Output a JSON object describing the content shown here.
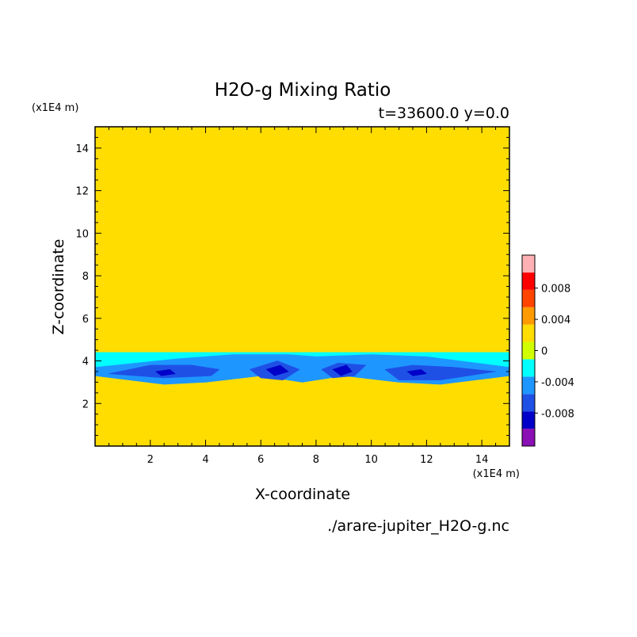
{
  "chart_data": {
    "type": "heatmap",
    "title": "H2O-g Mixing Ratio",
    "subtitle": "t=33600.0 y=0.0",
    "xlabel": "X-coordinate",
    "ylabel": "Z-coordinate",
    "x_unit": "(x1E4 m)",
    "y_unit": "(x1E4 m)",
    "source": "./arare-jupiter_H2O-g.nc",
    "xlim": [
      0,
      15
    ],
    "ylim": [
      0,
      15
    ],
    "x_ticks": [
      2,
      4,
      6,
      8,
      10,
      12,
      14
    ],
    "y_ticks": [
      2,
      4,
      6,
      8,
      10,
      12,
      14
    ],
    "colorbar": {
      "levels": [
        -0.01,
        -0.008,
        -0.006,
        -0.004,
        -0.002,
        0,
        0.002,
        0.004,
        0.006,
        0.008,
        0.01
      ],
      "colors": [
        "#8a0fb4",
        "#0000c8",
        "#1f50e6",
        "#1e96ff",
        "#00ffff",
        "#d2ff00",
        "#ffdd00",
        "#ff9a00",
        "#ff4400",
        "#ff0000",
        "#ffb0b4"
      ],
      "tick_labels": [
        "-0.008",
        "-0.004",
        "0",
        "0.004",
        "0.008"
      ],
      "tick_values": [
        -0.008,
        -0.004,
        0,
        0.004,
        0.008
      ]
    },
    "background_value": 0.0,
    "field_regions": [
      {
        "value": 0.001,
        "polygon": [
          [
            0,
            0
          ],
          [
            0,
            3.1
          ],
          [
            1.5,
            3.0
          ],
          [
            2,
            2.8
          ],
          [
            3,
            2.6
          ],
          [
            3.4,
            2.0
          ],
          [
            3.2,
            0.3
          ],
          [
            3.4,
            0.1
          ],
          [
            4.1,
            0.2
          ],
          [
            4.4,
            1.8
          ],
          [
            4.8,
            2.5
          ],
          [
            6,
            2.8
          ],
          [
            6.8,
            2.3
          ],
          [
            7.2,
            1.6
          ],
          [
            7.4,
            0.8
          ],
          [
            7.6,
            0.8
          ],
          [
            8,
            1.3
          ],
          [
            8.5,
            2.3
          ],
          [
            9.5,
            2.8
          ],
          [
            10.7,
            2.6
          ],
          [
            11.3,
            1.8
          ],
          [
            11.7,
            0.2
          ],
          [
            12.2,
            0.2
          ],
          [
            12.6,
            1.5
          ],
          [
            13,
            2.7
          ],
          [
            14,
            3.0
          ],
          [
            15,
            3.1
          ],
          [
            15,
            0
          ]
        ]
      },
      {
        "value": 0.001,
        "polygon": [
          [
            0,
            7.3
          ],
          [
            0,
            11.9
          ],
          [
            4.6,
            11.9
          ],
          [
            4.4,
            11.2
          ],
          [
            3.8,
            10.9
          ],
          [
            3.4,
            10.3
          ],
          [
            2.8,
            9.9
          ],
          [
            1.5,
            10.3
          ],
          [
            0.8,
            9.7
          ],
          [
            0.5,
            9.0
          ],
          [
            1.0,
            8.6
          ],
          [
            1.3,
            8.0
          ],
          [
            1.0,
            7.3
          ]
        ]
      },
      {
        "value": 0.001,
        "polygon": [
          [
            15,
            7.3
          ],
          [
            15,
            11.9
          ],
          [
            10.4,
            11.9
          ],
          [
            10.6,
            11.2
          ],
          [
            11.2,
            10.9
          ],
          [
            11.6,
            10.3
          ],
          [
            12.2,
            9.9
          ],
          [
            13.5,
            10.3
          ],
          [
            14.2,
            9.7
          ],
          [
            14.5,
            9.0
          ],
          [
            14.0,
            8.6
          ],
          [
            13.7,
            8.0
          ],
          [
            14.0,
            7.3
          ]
        ]
      },
      {
        "value": 0.001,
        "polygon": [
          [
            1.6,
            8.2
          ],
          [
            1.7,
            7.3
          ],
          [
            2.5,
            7.4
          ],
          [
            2.7,
            7.9
          ],
          [
            2.1,
            8.1
          ]
        ]
      },
      {
        "value": 0.001,
        "polygon": [
          [
            13.4,
            8.2
          ],
          [
            13.3,
            7.3
          ],
          [
            12.5,
            7.4
          ],
          [
            12.3,
            7.9
          ],
          [
            12.9,
            8.1
          ]
        ]
      },
      {
        "value": 0.001,
        "polygon": [
          [
            4.6,
            9.2
          ],
          [
            5.3,
            9.7
          ],
          [
            6.0,
            9.6
          ],
          [
            6.2,
            9.0
          ],
          [
            5.4,
            8.9
          ],
          [
            5.0,
            7.8
          ],
          [
            4.8,
            8.5
          ]
        ]
      },
      {
        "value": 0.001,
        "polygon": [
          [
            10.4,
            9.2
          ],
          [
            9.7,
            9.7
          ],
          [
            9.0,
            9.6
          ],
          [
            8.8,
            9.0
          ],
          [
            9.6,
            8.9
          ],
          [
            10.0,
            7.8
          ],
          [
            10.2,
            8.5
          ]
        ]
      },
      {
        "value": 0.001,
        "polygon": [
          [
            5.6,
            8.4
          ],
          [
            6.0,
            8.7
          ],
          [
            6.6,
            8.3
          ],
          [
            6.3,
            7.7
          ],
          [
            5.8,
            7.8
          ]
        ]
      },
      {
        "value": 0.001,
        "polygon": [
          [
            9.4,
            8.4
          ],
          [
            9.0,
            8.7
          ],
          [
            8.4,
            8.3
          ],
          [
            8.7,
            7.7
          ],
          [
            9.2,
            7.8
          ]
        ]
      },
      {
        "value": 0.001,
        "polygon": [
          [
            3.4,
            7.2
          ],
          [
            3.8,
            7.4
          ],
          [
            4.0,
            6.9
          ],
          [
            3.6,
            6.5
          ],
          [
            3.3,
            6.8
          ]
        ]
      },
      {
        "value": 0.001,
        "polygon": [
          [
            11.6,
            7.2
          ],
          [
            11.2,
            7.4
          ],
          [
            11.0,
            6.9
          ],
          [
            11.4,
            6.5
          ],
          [
            11.7,
            6.8
          ]
        ]
      },
      {
        "value": 0.001,
        "polygon": [
          [
            3.1,
            5.7
          ],
          [
            3.6,
            5.9
          ],
          [
            3.9,
            5.6
          ],
          [
            3.4,
            5.3
          ],
          [
            3.0,
            5.4
          ]
        ]
      },
      {
        "value": 0.001,
        "polygon": [
          [
            11.9,
            5.7
          ],
          [
            11.4,
            5.9
          ],
          [
            11.1,
            5.6
          ],
          [
            11.6,
            5.3
          ],
          [
            12.0,
            5.4
          ]
        ]
      },
      {
        "value": 0.001,
        "polygon": [
          [
            7.1,
            11.8
          ],
          [
            7.4,
            12.0
          ],
          [
            7.8,
            11.9
          ],
          [
            7.6,
            11.6
          ],
          [
            7.3,
            11.5
          ]
        ]
      },
      {
        "value": -0.003,
        "polygon": [
          [
            0,
            3.5
          ],
          [
            0,
            4.4
          ],
          [
            15,
            4.4
          ],
          [
            15,
            3.5
          ],
          [
            13,
            3.2
          ],
          [
            11,
            3.2
          ],
          [
            9,
            3.4
          ],
          [
            7.5,
            3.3
          ],
          [
            6,
            3.4
          ],
          [
            4,
            3.3
          ],
          [
            2,
            3.4
          ]
        ]
      },
      {
        "value": -0.005,
        "polygon": [
          [
            0,
            3.3
          ],
          [
            0,
            3.7
          ],
          [
            3,
            4.1
          ],
          [
            5,
            4.3
          ],
          [
            7,
            4.3
          ],
          [
            8,
            4.2
          ],
          [
            10,
            4.3
          ],
          [
            12,
            4.2
          ],
          [
            15,
            3.7
          ],
          [
            15,
            3.3
          ],
          [
            12.5,
            2.9
          ],
          [
            11,
            3.0
          ],
          [
            9,
            3.3
          ],
          [
            7.5,
            3.0
          ],
          [
            6,
            3.3
          ],
          [
            4,
            3.0
          ],
          [
            2.5,
            2.9
          ]
        ]
      },
      {
        "value": -0.007,
        "polygon": [
          [
            0.5,
            3.4
          ],
          [
            2,
            3.8
          ],
          [
            3.5,
            3.8
          ],
          [
            4.5,
            3.6
          ],
          [
            4.2,
            3.3
          ],
          [
            2.5,
            3.2
          ]
        ]
      },
      {
        "value": -0.007,
        "polygon": [
          [
            5.6,
            3.6
          ],
          [
            6.6,
            4.0
          ],
          [
            7.4,
            3.6
          ],
          [
            6.8,
            3.1
          ],
          [
            6.0,
            3.2
          ]
        ]
      },
      {
        "value": -0.007,
        "polygon": [
          [
            8.2,
            3.6
          ],
          [
            8.8,
            3.9
          ],
          [
            9.8,
            3.8
          ],
          [
            9.4,
            3.3
          ],
          [
            8.6,
            3.2
          ]
        ]
      },
      {
        "value": -0.007,
        "polygon": [
          [
            10.5,
            3.6
          ],
          [
            11.5,
            3.8
          ],
          [
            13,
            3.7
          ],
          [
            14.5,
            3.5
          ],
          [
            12.5,
            3.1
          ],
          [
            11,
            3.1
          ]
        ]
      },
      {
        "value": -0.009,
        "polygon": [
          [
            6.2,
            3.6
          ],
          [
            6.7,
            3.8
          ],
          [
            7.0,
            3.5
          ],
          [
            6.5,
            3.3
          ]
        ]
      },
      {
        "value": -0.009,
        "polygon": [
          [
            8.6,
            3.6
          ],
          [
            9.1,
            3.8
          ],
          [
            9.3,
            3.5
          ],
          [
            8.9,
            3.3
          ]
        ]
      },
      {
        "value": -0.009,
        "polygon": [
          [
            11.3,
            3.5
          ],
          [
            11.8,
            3.6
          ],
          [
            12.0,
            3.4
          ],
          [
            11.5,
            3.3
          ]
        ]
      },
      {
        "value": -0.009,
        "polygon": [
          [
            2.2,
            3.5
          ],
          [
            2.7,
            3.6
          ],
          [
            2.9,
            3.4
          ],
          [
            2.4,
            3.3
          ]
        ]
      }
    ]
  }
}
